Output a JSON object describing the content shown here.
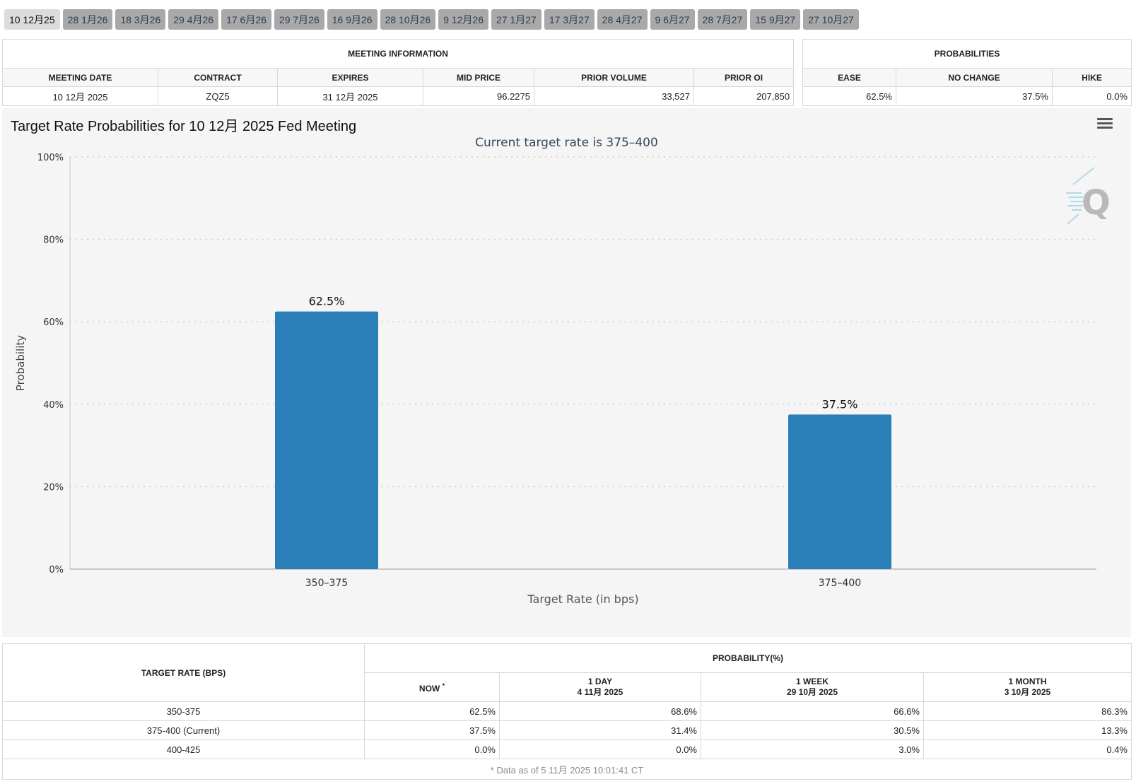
{
  "tabs": [
    {
      "label": "10 12月25",
      "active": true
    },
    {
      "label": "28 1月26"
    },
    {
      "label": "18 3月26"
    },
    {
      "label": "29 4月26"
    },
    {
      "label": "17 6月26"
    },
    {
      "label": "29 7月26"
    },
    {
      "label": "16 9月26"
    },
    {
      "label": "28 10月26"
    },
    {
      "label": "9 12月26"
    },
    {
      "label": "27 1月27"
    },
    {
      "label": "17 3月27"
    },
    {
      "label": "28 4月27"
    },
    {
      "label": "9 6月27"
    },
    {
      "label": "28 7月27"
    },
    {
      "label": "15 9月27"
    },
    {
      "label": "27 10月27"
    }
  ],
  "meeting_info": {
    "group_title": "MEETING INFORMATION",
    "headers": {
      "meeting_date": "MEETING DATE",
      "contract": "CONTRACT",
      "expires": "EXPIRES",
      "mid_price": "MID PRICE",
      "prior_volume": "PRIOR VOLUME",
      "prior_oi": "PRIOR OI"
    },
    "row": {
      "meeting_date": "10 12月 2025",
      "contract": "ZQZ5",
      "expires": "31 12月 2025",
      "mid_price": "96.2275",
      "prior_volume": "33,527",
      "prior_oi": "207,850"
    }
  },
  "probabilities": {
    "group_title": "PROBABILITIES",
    "headers": {
      "ease": "EASE",
      "no_change": "NO CHANGE",
      "hike": "HIKE"
    },
    "row": {
      "ease": "62.5%",
      "no_change": "37.5%",
      "hike": "0.0%"
    }
  },
  "chart": {
    "title": "Target Rate Probabilities for 10 12月 2025 Fed Meeting",
    "subtitle": "Current target rate is 375–400"
  },
  "chart_data": {
    "type": "bar",
    "title": "Target Rate Probabilities for 10 12月 2025 Fed Meeting",
    "subtitle": "Current target rate is 375–400",
    "categories": [
      "350–375",
      "375–400"
    ],
    "values": [
      62.5,
      37.5
    ],
    "data_labels": [
      "62.5%",
      "37.5%"
    ],
    "xlabel": "Target Rate (in bps)",
    "ylabel": "Probability",
    "ylim": [
      0,
      100
    ],
    "yticks": [
      "0%",
      "20%",
      "40%",
      "60%",
      "80%",
      "100%"
    ],
    "grid": true,
    "bar_color": "#2a7fb8"
  },
  "rate_table": {
    "target_rate_header": "TARGET RATE (BPS)",
    "probability_header": "PROBABILITY(%)",
    "columns": [
      {
        "label": "NOW",
        "note": "*"
      },
      {
        "label": "1 DAY",
        "date": "4 11月 2025"
      },
      {
        "label": "1 WEEK",
        "date": "29 10月 2025"
      },
      {
        "label": "1 MONTH",
        "date": "3 10月 2025"
      }
    ],
    "rows": [
      {
        "rate": "350-375",
        "now": "62.5%",
        "day": "68.6%",
        "week": "66.6%",
        "month": "86.3%"
      },
      {
        "rate": "375-400 (Current)",
        "now": "37.5%",
        "day": "31.4%",
        "week": "30.5%",
        "month": "13.3%"
      },
      {
        "rate": "400-425",
        "now": "0.0%",
        "day": "0.0%",
        "week": "3.0%",
        "month": "0.4%"
      }
    ],
    "footnote": "* Data as of 5 11月 2025 10:01:41 CT"
  }
}
